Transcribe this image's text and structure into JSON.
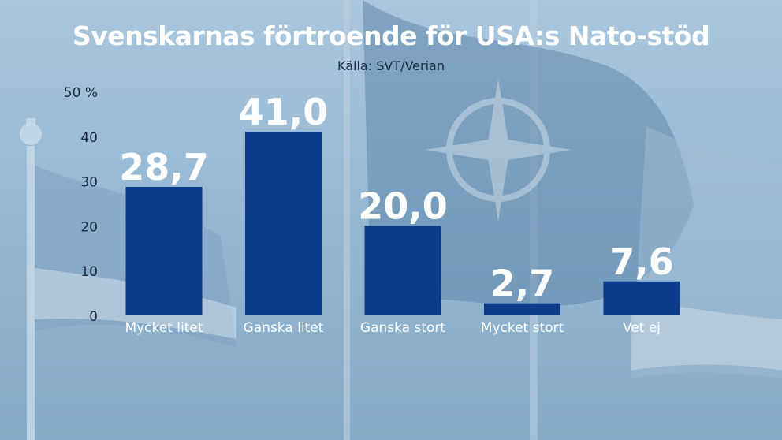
{
  "chart_data": {
    "type": "bar",
    "title": "Svenskarnas förtroende för USA:s Nato-stöd",
    "subtitle": "Källa: SVT/Verian",
    "categories": [
      "Mycket litet",
      "Ganska litet",
      "Ganska stort",
      "Mycket stort",
      "Vet ej"
    ],
    "values": [
      28.7,
      41.0,
      20.0,
      2.7,
      7.6
    ],
    "value_labels": [
      "28,7",
      "41,0",
      "20,0",
      "2,7",
      "7,6"
    ],
    "y_ticks": [
      0,
      10,
      20,
      30,
      40,
      50
    ],
    "y_tick_labels": [
      "0",
      "10",
      "20",
      "30",
      "40",
      "50 %"
    ],
    "ylim": [
      0,
      50
    ],
    "grid": false,
    "legend": "none",
    "bar_color": "#0c3b8a",
    "label_color": "#ffffff"
  }
}
